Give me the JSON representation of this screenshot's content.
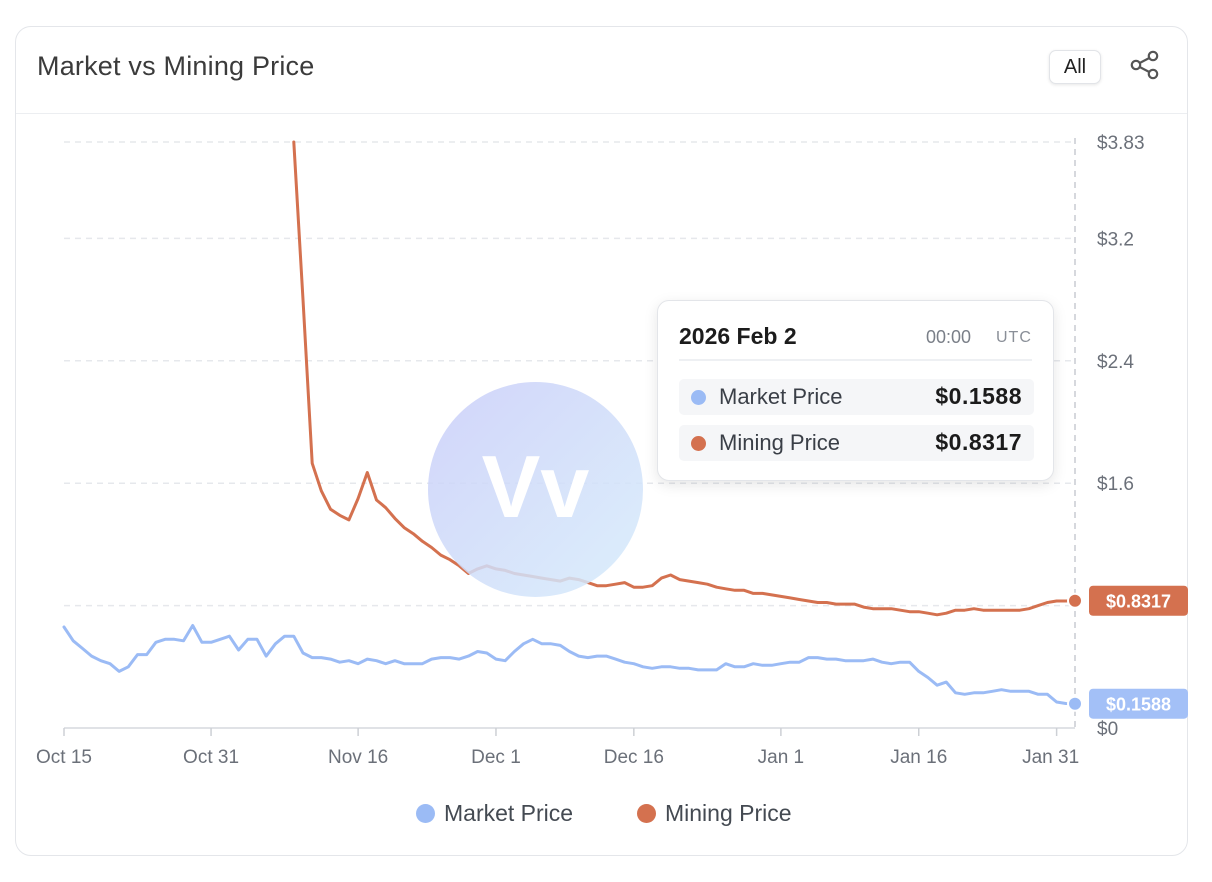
{
  "header": {
    "title": "Market vs Mining Price",
    "range_button": "All"
  },
  "icons": {
    "share": "share-icon",
    "watermark": "logo-watermark"
  },
  "watermark": {
    "text": "Vv"
  },
  "colors": {
    "market": "#9bbbf5",
    "mining": "#d4714f",
    "market_badge": "#a3c0f7",
    "mining_badge": "#d4714f",
    "grid": "#e6e8ec",
    "axis_text": "#6b7079"
  },
  "tooltip": {
    "date": "2026 Feb 2",
    "time": "00:00",
    "timezone": "UTC",
    "rows": [
      {
        "label": "Market Price",
        "value": "$0.1588"
      },
      {
        "label": "Mining Price",
        "value": "$0.8317"
      }
    ]
  },
  "chart_data": {
    "type": "line",
    "title": "Market vs Mining Price",
    "xlabel": "",
    "ylabel": "",
    "x_start": "Oct 15",
    "x_end": "Feb 2",
    "x_ticks": [
      "Oct 15",
      "Oct 31",
      "Nov 16",
      "Dec 1",
      "Dec 16",
      "Jan 1",
      "Jan 16",
      "Jan 31"
    ],
    "y_ticks": [
      "$3.83",
      "$3.2",
      "$2.4",
      "$1.6",
      "$0.8317",
      "$0.1588",
      "$0"
    ],
    "gridline_values": [
      3.83,
      3.2,
      2.4,
      1.6,
      0.8
    ],
    "ylim": [
      0,
      3.83
    ],
    "grid": true,
    "legend": "bottom-center",
    "series": [
      {
        "name": "Market Price",
        "x": [
          "Oct 15",
          "Oct 16",
          "Oct 17",
          "Oct 18",
          "Oct 19",
          "Oct 20",
          "Oct 21",
          "Oct 22",
          "Oct 23",
          "Oct 24",
          "Oct 25",
          "Oct 26",
          "Oct 27",
          "Oct 28",
          "Oct 29",
          "Oct 30",
          "Oct 31",
          "Nov 1",
          "Nov 2",
          "Nov 3",
          "Nov 4",
          "Nov 5",
          "Nov 6",
          "Nov 7",
          "Nov 8",
          "Nov 9",
          "Nov 10",
          "Nov 11",
          "Nov 12",
          "Nov 13",
          "Nov 14",
          "Nov 15",
          "Nov 16",
          "Nov 17",
          "Nov 18",
          "Nov 19",
          "Nov 20",
          "Nov 21",
          "Nov 22",
          "Nov 23",
          "Nov 24",
          "Nov 25",
          "Nov 26",
          "Nov 27",
          "Nov 28",
          "Nov 29",
          "Nov 30",
          "Dec 1",
          "Dec 2",
          "Dec 3",
          "Dec 4",
          "Dec 5",
          "Dec 6",
          "Dec 7",
          "Dec 8",
          "Dec 9",
          "Dec 10",
          "Dec 11",
          "Dec 12",
          "Dec 13",
          "Dec 14",
          "Dec 15",
          "Dec 16",
          "Dec 17",
          "Dec 18",
          "Dec 19",
          "Dec 20",
          "Dec 21",
          "Dec 22",
          "Dec 23",
          "Dec 24",
          "Dec 25",
          "Dec 26",
          "Dec 27",
          "Dec 28",
          "Dec 29",
          "Dec 30",
          "Dec 31",
          "Jan 1",
          "Jan 2",
          "Jan 3",
          "Jan 4",
          "Jan 5",
          "Jan 6",
          "Jan 7",
          "Jan 8",
          "Jan 9",
          "Jan 10",
          "Jan 11",
          "Jan 12",
          "Jan 13",
          "Jan 14",
          "Jan 15",
          "Jan 16",
          "Jan 17",
          "Jan 18",
          "Jan 19",
          "Jan 20",
          "Jan 21",
          "Jan 22",
          "Jan 23",
          "Jan 24",
          "Jan 25",
          "Jan 26",
          "Jan 27",
          "Jan 28",
          "Jan 29",
          "Jan 30",
          "Jan 31",
          "Feb 1",
          "Feb 2"
        ],
        "values": [
          0.66,
          0.57,
          0.52,
          0.47,
          0.44,
          0.42,
          0.37,
          0.4,
          0.48,
          0.48,
          0.56,
          0.58,
          0.58,
          0.57,
          0.67,
          0.56,
          0.56,
          0.58,
          0.6,
          0.51,
          0.58,
          0.58,
          0.47,
          0.55,
          0.6,
          0.6,
          0.49,
          0.46,
          0.46,
          0.45,
          0.43,
          0.44,
          0.42,
          0.45,
          0.44,
          0.42,
          0.44,
          0.42,
          0.42,
          0.42,
          0.45,
          0.46,
          0.46,
          0.45,
          0.47,
          0.5,
          0.49,
          0.45,
          0.44,
          0.5,
          0.55,
          0.58,
          0.55,
          0.55,
          0.54,
          0.5,
          0.47,
          0.46,
          0.47,
          0.47,
          0.45,
          0.43,
          0.42,
          0.4,
          0.39,
          0.4,
          0.4,
          0.39,
          0.39,
          0.38,
          0.38,
          0.38,
          0.42,
          0.4,
          0.4,
          0.42,
          0.41,
          0.41,
          0.42,
          0.43,
          0.43,
          0.46,
          0.46,
          0.45,
          0.45,
          0.44,
          0.44,
          0.44,
          0.45,
          0.43,
          0.42,
          0.43,
          0.43,
          0.37,
          0.33,
          0.28,
          0.3,
          0.23,
          0.22,
          0.23,
          0.23,
          0.24,
          0.25,
          0.24,
          0.24,
          0.24,
          0.22,
          0.22,
          0.17,
          0.16,
          0.1588
        ]
      },
      {
        "name": "Mining Price",
        "x": [
          "Nov 9",
          "Nov 10",
          "Nov 11",
          "Nov 12",
          "Nov 13",
          "Nov 14",
          "Nov 15",
          "Nov 16",
          "Nov 17",
          "Nov 18",
          "Nov 19",
          "Nov 20",
          "Nov 21",
          "Nov 22",
          "Nov 23",
          "Nov 24",
          "Nov 25",
          "Nov 26",
          "Nov 27",
          "Nov 28",
          "Nov 29",
          "Nov 30",
          "Dec 1",
          "Dec 2",
          "Dec 3",
          "Dec 4",
          "Dec 5",
          "Dec 6",
          "Dec 7",
          "Dec 8",
          "Dec 9",
          "Dec 10",
          "Dec 11",
          "Dec 12",
          "Dec 13",
          "Dec 14",
          "Dec 15",
          "Dec 16",
          "Dec 17",
          "Dec 18",
          "Dec 19",
          "Dec 20",
          "Dec 21",
          "Dec 22",
          "Dec 23",
          "Dec 24",
          "Dec 25",
          "Dec 26",
          "Dec 27",
          "Dec 28",
          "Dec 29",
          "Dec 30",
          "Dec 31",
          "Jan 1",
          "Jan 2",
          "Jan 3",
          "Jan 4",
          "Jan 5",
          "Jan 6",
          "Jan 7",
          "Jan 8",
          "Jan 9",
          "Jan 10",
          "Jan 11",
          "Jan 12",
          "Jan 13",
          "Jan 14",
          "Jan 15",
          "Jan 16",
          "Jan 17",
          "Jan 18",
          "Jan 19",
          "Jan 20",
          "Jan 21",
          "Jan 22",
          "Jan 23",
          "Jan 24",
          "Jan 25",
          "Jan 26",
          "Jan 27",
          "Jan 28",
          "Jan 29",
          "Jan 30",
          "Jan 31",
          "Feb 1",
          "Feb 2"
        ],
        "values": [
          3.83,
          2.8,
          1.73,
          1.55,
          1.43,
          1.39,
          1.36,
          1.5,
          1.67,
          1.49,
          1.44,
          1.37,
          1.31,
          1.27,
          1.22,
          1.18,
          1.13,
          1.1,
          1.06,
          1.01,
          1.04,
          1.06,
          1.04,
          1.03,
          1.01,
          1.0,
          0.99,
          0.98,
          0.97,
          0.96,
          0.98,
          0.97,
          0.95,
          0.93,
          0.93,
          0.94,
          0.95,
          0.92,
          0.92,
          0.93,
          0.98,
          1.0,
          0.97,
          0.96,
          0.95,
          0.94,
          0.92,
          0.91,
          0.9,
          0.9,
          0.88,
          0.88,
          0.87,
          0.86,
          0.85,
          0.84,
          0.83,
          0.82,
          0.82,
          0.81,
          0.81,
          0.81,
          0.79,
          0.78,
          0.78,
          0.78,
          0.77,
          0.76,
          0.76,
          0.75,
          0.74,
          0.75,
          0.77,
          0.77,
          0.78,
          0.77,
          0.77,
          0.77,
          0.77,
          0.77,
          0.78,
          0.8,
          0.82,
          0.83,
          0.83,
          0.8317
        ]
      }
    ]
  },
  "legend": {
    "items": [
      {
        "label": "Market Price"
      },
      {
        "label": "Mining Price"
      }
    ]
  }
}
